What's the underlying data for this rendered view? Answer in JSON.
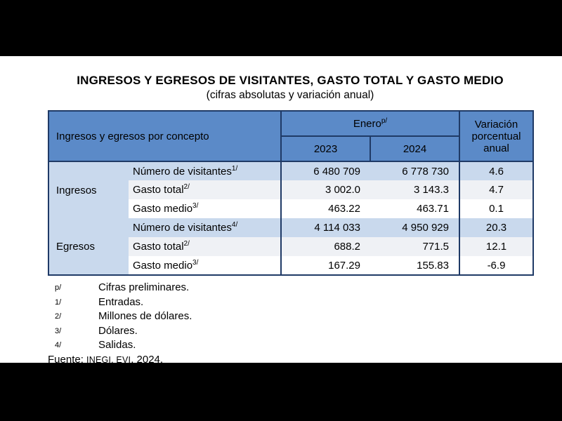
{
  "title": "INGRESOS Y EGRESOS DE VISITANTES, GASTO TOTAL Y GASTO MEDIO",
  "subtitle": "(cifras absolutas y variación anual)",
  "table": {
    "header": {
      "concept": "Ingresos y egresos por concepto",
      "period_label": "Enero",
      "period_sup": "p/",
      "year_2023": "2023",
      "year_2024": "2024",
      "variation": "Variación porcentual anual"
    },
    "rows": [
      {
        "group": "Ingresos",
        "concept": "Número de visitantes",
        "sup": "1/",
        "y2023": "6 480 709",
        "y2024": "6 778 730",
        "variation": "4.6"
      },
      {
        "concept": "Gasto total",
        "sup": "2/",
        "y2023": "3 002.0",
        "y2024": "3 143.3",
        "variation": "4.7"
      },
      {
        "concept": "Gasto medio",
        "sup": "3/",
        "y2023": "463.22",
        "y2024": "463.71",
        "variation": "0.1"
      },
      {
        "group": "Egresos",
        "concept": "Número de visitantes",
        "sup": "4/",
        "y2023": "4 114 033",
        "y2024": "4 950 929",
        "variation": "20.3"
      },
      {
        "concept": "Gasto total",
        "sup": "2/",
        "y2023": "688.2",
        "y2024": "771.5",
        "variation": "12.1"
      },
      {
        "concept": "Gasto medio",
        "sup": "3/",
        "y2023": "167.29",
        "y2024": "155.83",
        "variation": "-6.9"
      }
    ]
  },
  "footnotes": [
    {
      "marker": "p/",
      "text": "Cifras preliminares."
    },
    {
      "marker": "1/",
      "text": "Entradas."
    },
    {
      "marker": "2/",
      "text": "Millones de dólares."
    },
    {
      "marker": "3/",
      "text": "Dólares."
    },
    {
      "marker": "4/",
      "text": "Salidas."
    }
  ],
  "source": {
    "prefix": "Fuente: ",
    "org": "INEGI. EVI",
    "year": ", 2024."
  },
  "colors": {
    "header_blue": "#5b8ac8",
    "band_light_blue": "#c9d9ed",
    "band_light_gray": "#eff1f5",
    "border_navy": "#1f3a66",
    "letterbox_black": "#000000",
    "background_white": "#ffffff"
  }
}
